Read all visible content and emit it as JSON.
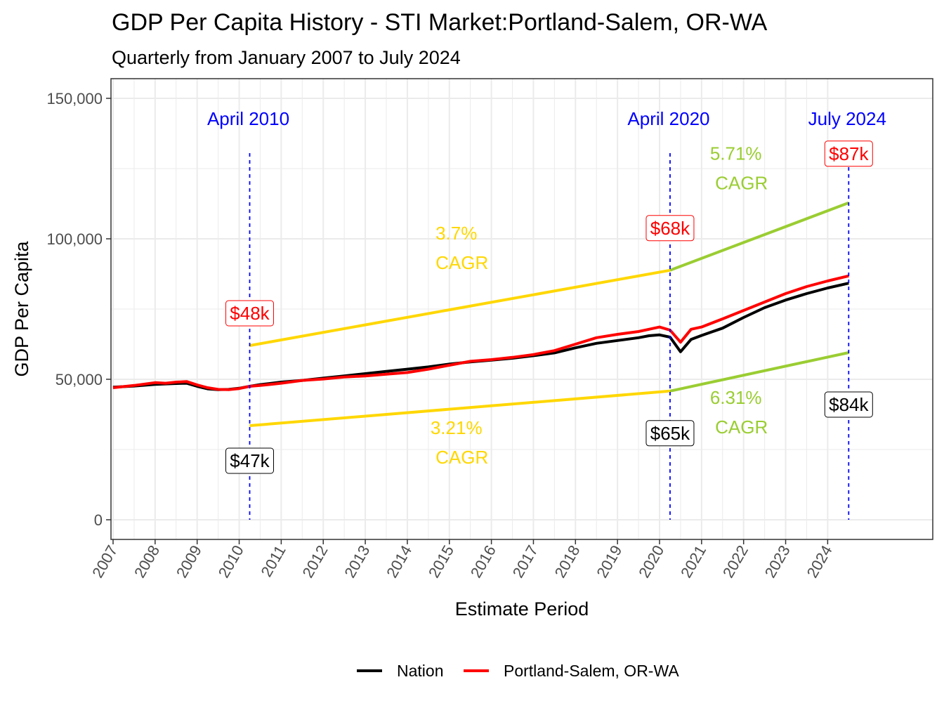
{
  "chart_data": {
    "type": "line",
    "title": "GDP Per Capita History - STI Market:Portland-Salem, OR-WA",
    "subtitle": "Quarterly from January 2007 to July 2024",
    "xlabel": "Estimate Period",
    "ylabel": "GDP Per Capita",
    "xlim": [
      2006.95,
      2026.5
    ],
    "ylim": [
      -7000,
      157000
    ],
    "x_ticks": [
      2007,
      2008,
      2009,
      2010,
      2011,
      2012,
      2013,
      2014,
      2015,
      2016,
      2017,
      2018,
      2019,
      2020,
      2021,
      2022,
      2023,
      2024
    ],
    "x_tick_labels": [
      "2007",
      "2008",
      "2009",
      "2010",
      "2011",
      "2012",
      "2013",
      "2014",
      "2015",
      "2016",
      "2017",
      "2018",
      "2019",
      "2020",
      "2021",
      "2022",
      "2023",
      "2024"
    ],
    "y_ticks": [
      0,
      50000,
      100000,
      150000
    ],
    "y_tick_labels": [
      "0",
      "50,000",
      "100,000",
      "150,000"
    ],
    "legend": {
      "position": "bottom",
      "entries": [
        "Nation",
        "Portland-Salem, OR-WA"
      ]
    },
    "series": [
      {
        "name": "Nation",
        "color": "#000000",
        "points": [
          [
            2007.0,
            47200
          ],
          [
            2007.5,
            47600
          ],
          [
            2008.0,
            48200
          ],
          [
            2008.5,
            48500
          ],
          [
            2008.75,
            48600
          ],
          [
            2009.0,
            47500
          ],
          [
            2009.25,
            46600
          ],
          [
            2009.5,
            46300
          ],
          [
            2009.75,
            46400
          ],
          [
            2010.0,
            46800
          ],
          [
            2010.25,
            47500
          ],
          [
            2010.5,
            48100
          ],
          [
            2011.0,
            49000
          ],
          [
            2011.5,
            49600
          ],
          [
            2012.0,
            50400
          ],
          [
            2012.5,
            51200
          ],
          [
            2013.0,
            52000
          ],
          [
            2013.5,
            52800
          ],
          [
            2014.0,
            53600
          ],
          [
            2014.5,
            54400
          ],
          [
            2015.0,
            55400
          ],
          [
            2015.5,
            56200
          ],
          [
            2016.0,
            56800
          ],
          [
            2016.5,
            57500
          ],
          [
            2017.0,
            58400
          ],
          [
            2017.5,
            59400
          ],
          [
            2018.0,
            61200
          ],
          [
            2018.5,
            62800
          ],
          [
            2019.0,
            63800
          ],
          [
            2019.5,
            64800
          ],
          [
            2019.75,
            65500
          ],
          [
            2020.0,
            65800
          ],
          [
            2020.25,
            65000
          ],
          [
            2020.5,
            59800
          ],
          [
            2020.75,
            64200
          ],
          [
            2021.0,
            65600
          ],
          [
            2021.5,
            68200
          ],
          [
            2022.0,
            72000
          ],
          [
            2022.5,
            75500
          ],
          [
            2023.0,
            78200
          ],
          [
            2023.5,
            80500
          ],
          [
            2024.0,
            82500
          ],
          [
            2024.5,
            84200
          ]
        ]
      },
      {
        "name": "Portland-Salem, OR-WA",
        "color": "#ff0000",
        "points": [
          [
            2007.0,
            47000
          ],
          [
            2007.5,
            47800
          ],
          [
            2008.0,
            48800
          ],
          [
            2008.25,
            48600
          ],
          [
            2008.5,
            49000
          ],
          [
            2008.75,
            49200
          ],
          [
            2009.0,
            48000
          ],
          [
            2009.25,
            47000
          ],
          [
            2009.5,
            46400
          ],
          [
            2009.75,
            46300
          ],
          [
            2010.0,
            46700
          ],
          [
            2010.25,
            47500
          ],
          [
            2010.5,
            47800
          ],
          [
            2011.0,
            48600
          ],
          [
            2011.5,
            49600
          ],
          [
            2012.0,
            50100
          ],
          [
            2012.5,
            50800
          ],
          [
            2013.0,
            51200
          ],
          [
            2013.5,
            51800
          ],
          [
            2014.0,
            52400
          ],
          [
            2014.5,
            53600
          ],
          [
            2015.0,
            55000
          ],
          [
            2015.5,
            56400
          ],
          [
            2016.0,
            57000
          ],
          [
            2016.5,
            57800
          ],
          [
            2017.0,
            58800
          ],
          [
            2017.5,
            60200
          ],
          [
            2018.0,
            62500
          ],
          [
            2018.5,
            64800
          ],
          [
            2019.0,
            66000
          ],
          [
            2019.5,
            67000
          ],
          [
            2019.75,
            67800
          ],
          [
            2020.0,
            68600
          ],
          [
            2020.25,
            67500
          ],
          [
            2020.5,
            63200
          ],
          [
            2020.75,
            67800
          ],
          [
            2021.0,
            68600
          ],
          [
            2021.5,
            71500
          ],
          [
            2022.0,
            74500
          ],
          [
            2022.5,
            77500
          ],
          [
            2023.0,
            80500
          ],
          [
            2023.5,
            83000
          ],
          [
            2024.0,
            85000
          ],
          [
            2024.5,
            86800
          ]
        ]
      }
    ],
    "vlines": [
      {
        "x": 2010.25,
        "label": "April 2010"
      },
      {
        "x": 2020.25,
        "label": "April 2020"
      },
      {
        "x": 2024.5,
        "label": "July 2024"
      }
    ],
    "value_labels": [
      {
        "x": 2010.25,
        "y": 73500,
        "text": "$48k",
        "series": "Portland-Salem, OR-WA"
      },
      {
        "x": 2010.25,
        "y": 21000,
        "text": "$47k",
        "series": "Nation"
      },
      {
        "x": 2020.25,
        "y": 103800,
        "text": "$68k",
        "series": "Portland-Salem, OR-WA"
      },
      {
        "x": 2020.25,
        "y": 30800,
        "text": "$65k",
        "series": "Nation"
      },
      {
        "x": 2024.5,
        "y": 130300,
        "text": "$87k",
        "series": "Portland-Salem, OR-WA"
      },
      {
        "x": 2024.5,
        "y": 41000,
        "text": "$84k",
        "series": "Nation"
      }
    ],
    "trend_lines": [
      {
        "name": "Portland-Salem 2010-2020",
        "color": "#ffd700",
        "points": [
          [
            2010.25,
            62000
          ],
          [
            2020.25,
            88800
          ]
        ]
      },
      {
        "name": "Portland-Salem 2020-2024",
        "color": "#9acd32",
        "points": [
          [
            2020.25,
            88800
          ],
          [
            2024.5,
            112800
          ]
        ]
      },
      {
        "name": "Nation 2010-2020",
        "color": "#ffd700",
        "points": [
          [
            2010.25,
            33500
          ],
          [
            2020.25,
            45800
          ]
        ]
      },
      {
        "name": "Nation 2020-2024",
        "color": "#9acd32",
        "points": [
          [
            2020.25,
            45800
          ],
          [
            2024.5,
            59500
          ]
        ]
      }
    ],
    "cagr_labels": [
      {
        "x": 2015.3,
        "y": 97300,
        "line1": "3.7%",
        "line2": "CAGR",
        "color": "#ffd700"
      },
      {
        "x": 2015.3,
        "y": 28000,
        "line1": "3.21%",
        "line2": "CAGR",
        "color": "#ffd700"
      },
      {
        "x": 2021.95,
        "y": 125600,
        "line1": "5.71%",
        "line2": "CAGR",
        "color": "#9acd32"
      },
      {
        "x": 2021.95,
        "y": 38700,
        "line1": "6.31%",
        "line2": "CAGR",
        "color": "#9acd32"
      }
    ]
  }
}
